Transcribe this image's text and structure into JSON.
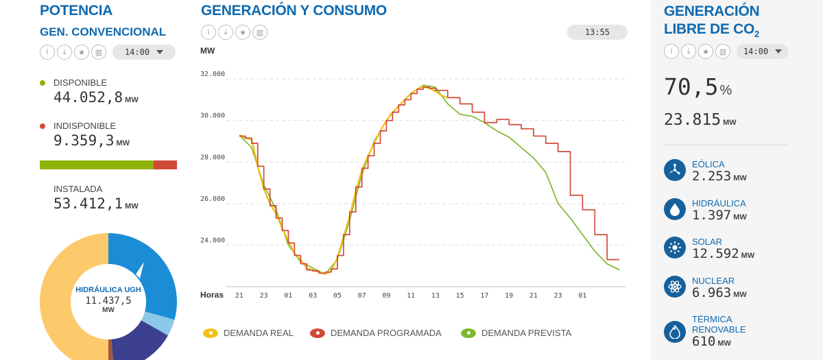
{
  "potencia": {
    "title": "POTENCIA",
    "subtitle": "GEN. CONVENCIONAL",
    "time": "14:00",
    "disponible": {
      "label": "DISPONIBLE",
      "value": "44.052,8",
      "unit": "MW",
      "color": "#8db20a"
    },
    "indisponible": {
      "label": "INDISPONIBLE",
      "value": "9.359,3",
      "unit": "MW",
      "color": "#d04a38"
    },
    "available_fraction": 0.83,
    "instalada": {
      "label": "INSTALADA",
      "value": "53.412,1",
      "unit": "MW"
    },
    "donut": {
      "label": "HIDRÁULICA UGH",
      "value": "11.437,5",
      "unit": "MW"
    }
  },
  "generacion": {
    "title": "GENERACIÓN Y CONSUMO",
    "time": "13:55",
    "legend": [
      {
        "label": "DEMANDA REAL",
        "color": "#f2c21b"
      },
      {
        "label": "DEMANDA PROGRAMADA",
        "color": "#d04a38"
      },
      {
        "label": "DEMANDA PREVISTA",
        "color": "#7fb82a"
      }
    ]
  },
  "libre": {
    "title_line1": "GENERACIÓN",
    "title_line2": "LIBRE DE CO",
    "title_sub": "2",
    "time": "14:00",
    "percent": "70,5",
    "percent_unit": "%",
    "total": "23.815",
    "total_unit": "MW",
    "items": [
      {
        "label": "EÓLICA",
        "value": "2.253",
        "unit": "MW",
        "icon": "wind-icon"
      },
      {
        "label": "HIDRÁULICA",
        "value": "1.397",
        "unit": "MW",
        "icon": "water-drop-icon"
      },
      {
        "label": "SOLAR",
        "value": "12.592",
        "unit": "MW",
        "icon": "sun-icon"
      },
      {
        "label": "NUCLEAR",
        "value": "6.963",
        "unit": "MW",
        "icon": "atom-icon"
      },
      {
        "label": "TÉRMICA RENOVABLE",
        "value": "610",
        "unit": "MW",
        "icon": "flame-icon"
      }
    ]
  },
  "chart_data": {
    "type": "line",
    "ylabel": "MW",
    "xlabel": "Horas",
    "ylim": [
      22000,
      32500
    ],
    "yticks": [
      "32.000",
      "30.000",
      "28.000",
      "26.000",
      "24.000"
    ],
    "xticks": [
      "21",
      "23",
      "01",
      "03",
      "05",
      "07",
      "09",
      "11",
      "13",
      "15",
      "17",
      "19",
      "21",
      "23",
      "01"
    ],
    "current_hour": 14,
    "series": [
      {
        "name": "DEMANDA REAL",
        "color": "#f2c21b",
        "x": [
          21,
          21.5,
          22,
          22.5,
          23,
          23.5,
          24,
          24.5,
          25,
          25.5,
          26,
          26.5,
          27,
          27.5,
          28,
          28.5,
          29,
          29.5,
          30,
          30.5,
          31,
          31.5,
          32,
          32.5,
          33,
          33.5,
          34,
          34.5,
          35,
          35.5,
          36,
          36.5,
          37,
          37.5,
          38
        ],
        "y": [
          29300,
          29150,
          29100,
          27800,
          26700,
          26000,
          25500,
          24800,
          24200,
          23600,
          23300,
          22900,
          22800,
          22700,
          22600,
          22750,
          23400,
          24400,
          25400,
          26600,
          27600,
          28300,
          28900,
          29500,
          30000,
          30400,
          30700,
          31000,
          31300,
          31500,
          31650,
          31550,
          31400,
          31200,
          31100
        ]
      },
      {
        "name": "DEMANDA PROGRAMADA",
        "color": "#d04a38",
        "step": true,
        "x": [
          21,
          21.5,
          22,
          22.5,
          23,
          23.5,
          24,
          24.5,
          25,
          25.5,
          26,
          26.5,
          27,
          27.5,
          28,
          28.5,
          29,
          29.5,
          30,
          30.5,
          31,
          31.5,
          32,
          32.5,
          33,
          33.5,
          34,
          34.5,
          35,
          35.5,
          36,
          36.5,
          37,
          38,
          39,
          40,
          41,
          42,
          43,
          44,
          45,
          46,
          47,
          48,
          49,
          50,
          51,
          52
        ],
        "y": [
          29250,
          29150,
          28900,
          27800,
          26700,
          25900,
          25300,
          24700,
          24100,
          23500,
          23100,
          22800,
          22750,
          22650,
          22700,
          22850,
          23500,
          24500,
          25600,
          26800,
          27700,
          28300,
          28900,
          29500,
          30000,
          30400,
          30750,
          31000,
          31300,
          31500,
          31600,
          31550,
          31450,
          31100,
          30800,
          30400,
          29900,
          30050,
          29800,
          29600,
          29250,
          28900,
          28500,
          26400,
          25700,
          24500,
          23300,
          23300
        ]
      },
      {
        "name": "DEMANDA PREVISTA",
        "color": "#7fb82a",
        "x": [
          21,
          22,
          23,
          24,
          25,
          26,
          27,
          28,
          29,
          30,
          31,
          32,
          33,
          34,
          35,
          36,
          37,
          38,
          39,
          40,
          41,
          42,
          43,
          44,
          45,
          46,
          47,
          48,
          49,
          50,
          51,
          52
        ],
        "y": [
          29300,
          28700,
          26900,
          25700,
          24000,
          23200,
          22900,
          22600,
          23300,
          25200,
          27400,
          29000,
          30000,
          30700,
          31300,
          31700,
          31600,
          30800,
          30300,
          30200,
          29900,
          29500,
          29200,
          28700,
          28200,
          27500,
          26000,
          25300,
          24500,
          23700,
          23100,
          22800
        ]
      }
    ]
  }
}
